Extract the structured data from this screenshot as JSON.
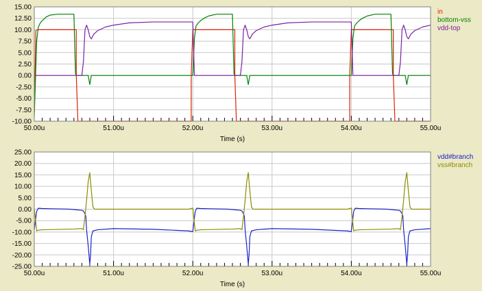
{
  "colors": {
    "background": "#ece9c6",
    "plot_bg": "#ffffff",
    "grid": "#c8c8c8",
    "axis": "#000000",
    "in": "#dd2200",
    "bottom_vss": "#008000",
    "vdd_top": "#7a1fa2",
    "vdd_branch": "#1a23c8",
    "vss_branch": "#8c8c00"
  },
  "chart_data": [
    {
      "type": "line",
      "title": "",
      "xlabel": "Time (s)",
      "ylabel": "",
      "grid": true,
      "legend_position": "right",
      "xlim": [
        50.0,
        55.0
      ],
      "ylim": [
        -10.0,
        15.0
      ],
      "x_tick_values": [
        50.0,
        51.0,
        52.0,
        53.0,
        54.0,
        55.0
      ],
      "x_tick_labels": [
        "50.00u",
        "51.00u",
        "52.00u",
        "53.00u",
        "54.00u",
        "55.00u"
      ],
      "y_tick_values": [
        15.0,
        12.5,
        10.0,
        7.5,
        5.0,
        2.5,
        0.0,
        -2.5,
        -5.0,
        -7.5,
        -10.0
      ],
      "y_tick_labels": [
        "15.00",
        "12.50",
        "10.00",
        "7.50",
        "5.00",
        "2.50",
        "0.00",
        "-2.50",
        "-5.00",
        "-7.50",
        "-10.00"
      ],
      "series": [
        {
          "name": "in",
          "color_key": "in",
          "x": [
            50.0,
            50.02,
            50.04,
            50.53,
            50.53,
            50.55,
            51.98,
            51.98,
            52.0,
            52.53,
            52.53,
            52.55,
            53.98,
            53.98,
            54.0,
            54.53,
            54.53,
            54.55,
            55.0
          ],
          "y": [
            -8,
            9.8,
            10.0,
            10.0,
            0.0,
            -10.0,
            -10.0,
            0.0,
            10.0,
            10.0,
            0.0,
            -10.0,
            -10.0,
            0.0,
            10.0,
            10.0,
            0.0,
            -10.0,
            -10.0
          ]
        },
        {
          "name": "bottom-vss",
          "color_key": "bottom_vss",
          "x": [
            50.0,
            50.03,
            50.05,
            50.07,
            50.09,
            50.12,
            50.15,
            50.2,
            50.3,
            50.45,
            50.5,
            50.52,
            50.54,
            50.6,
            50.68,
            50.7,
            50.72,
            50.8,
            51.9,
            52.0,
            52.02,
            52.04,
            52.07,
            52.1,
            52.15,
            52.2,
            52.3,
            52.45,
            52.5,
            52.52,
            52.54,
            52.6,
            52.68,
            52.7,
            52.72,
            52.8,
            53.9,
            54.0,
            54.02,
            54.04,
            54.07,
            54.1,
            54.15,
            54.2,
            54.3,
            54.45,
            54.5,
            54.52,
            54.54,
            54.6,
            54.68,
            54.7,
            54.72,
            54.8,
            55.0
          ],
          "y": [
            -9,
            7.5,
            10.5,
            11.3,
            11.8,
            12.3,
            12.8,
            13.2,
            13.4,
            13.4,
            13.4,
            0.3,
            0.0,
            0.0,
            0.0,
            -2.0,
            0.0,
            0.0,
            0.0,
            0.0,
            8.0,
            10.8,
            11.5,
            12.0,
            12.6,
            13.0,
            13.4,
            13.4,
            13.4,
            0.3,
            0.0,
            0.0,
            0.0,
            -2.0,
            0.0,
            0.0,
            0.0,
            0.0,
            8.0,
            10.8,
            11.5,
            12.0,
            12.6,
            13.0,
            13.4,
            13.4,
            13.4,
            0.3,
            0.0,
            0.0,
            0.0,
            -2.0,
            0.0,
            0.0,
            0.0
          ]
        },
        {
          "name": "vdd-top",
          "color_key": "vdd_top",
          "x": [
            50.0,
            50.5,
            50.55,
            50.6,
            50.62,
            50.64,
            50.66,
            50.68,
            50.7,
            50.72,
            50.75,
            50.8,
            50.9,
            51.0,
            51.2,
            51.5,
            51.95,
            52.0,
            52.02,
            52.5,
            52.55,
            52.6,
            52.62,
            52.64,
            52.66,
            52.68,
            52.7,
            52.72,
            52.75,
            52.8,
            52.9,
            53.0,
            53.2,
            53.5,
            53.95,
            54.0,
            54.02,
            54.5,
            54.55,
            54.6,
            54.62,
            54.64,
            54.66,
            54.68,
            54.7,
            54.72,
            54.75,
            54.8,
            54.9,
            55.0
          ],
          "y": [
            0.0,
            0.0,
            0.0,
            0.0,
            3.0,
            10.0,
            11.0,
            10.0,
            8.5,
            8.0,
            9.0,
            9.8,
            10.6,
            11.0,
            11.5,
            11.7,
            11.7,
            11.7,
            0.0,
            0.0,
            0.0,
            0.0,
            3.0,
            10.0,
            11.0,
            10.0,
            8.5,
            8.0,
            9.0,
            9.8,
            10.6,
            11.0,
            11.5,
            11.7,
            11.7,
            11.7,
            0.0,
            0.0,
            0.0,
            0.0,
            3.0,
            10.0,
            11.0,
            10.0,
            8.5,
            8.0,
            9.0,
            9.8,
            10.6,
            11.0
          ]
        }
      ]
    },
    {
      "type": "line",
      "title": "",
      "xlabel": "Time (s)",
      "ylabel": "",
      "grid": true,
      "legend_position": "right",
      "xlim": [
        50.0,
        55.0
      ],
      "ylim": [
        -25.0,
        25.0
      ],
      "x_tick_values": [
        50.0,
        51.0,
        52.0,
        53.0,
        54.0,
        55.0
      ],
      "x_tick_labels": [
        "50.00u",
        "51.00u",
        "52.00u",
        "53.00u",
        "54.00u",
        "55.00u"
      ],
      "y_tick_values": [
        25.0,
        20.0,
        15.0,
        10.0,
        5.0,
        0.0,
        -5.0,
        -10.0,
        -15.0,
        -20.0,
        -25.0
      ],
      "y_tick_labels": [
        "25.00",
        "20.00",
        "15.00",
        "10.00",
        "5.00",
        "0.00",
        "-5.00",
        "-10.00",
        "-15.00",
        "-20.00",
        "-25.00"
      ],
      "series": [
        {
          "name": "vdd#branch",
          "color_key": "vdd_branch",
          "x": [
            50.0,
            50.03,
            50.05,
            50.1,
            50.2,
            50.45,
            50.6,
            50.62,
            50.64,
            50.65,
            50.66,
            50.68,
            50.7,
            50.71,
            50.72,
            50.74,
            50.8,
            51.0,
            51.5,
            51.95,
            52.0,
            52.03,
            52.05,
            52.1,
            52.2,
            52.45,
            52.6,
            52.62,
            52.64,
            52.65,
            52.66,
            52.68,
            52.7,
            52.71,
            52.72,
            52.74,
            52.8,
            53.0,
            53.5,
            53.95,
            54.0,
            54.03,
            54.05,
            54.1,
            54.2,
            54.45,
            54.6,
            54.62,
            54.64,
            54.65,
            54.66,
            54.68,
            54.7,
            54.71,
            54.72,
            54.74,
            54.8,
            55.0
          ],
          "y": [
            -9.0,
            -1.0,
            0.4,
            0.3,
            0.2,
            0.0,
            -0.5,
            -0.8,
            -2.0,
            -3.0,
            -9.0,
            -16.0,
            -24.0,
            -20.0,
            -12.0,
            -9.5,
            -9.0,
            -8.5,
            -8.8,
            -9.5,
            -9.8,
            -1.0,
            0.4,
            0.3,
            0.2,
            0.0,
            -0.5,
            -0.8,
            -2.0,
            -3.0,
            -9.0,
            -16.0,
            -24.0,
            -20.0,
            -12.0,
            -9.5,
            -9.0,
            -8.5,
            -8.8,
            -9.5,
            -9.8,
            -1.0,
            0.4,
            0.3,
            0.2,
            0.0,
            -0.5,
            -0.8,
            -2.0,
            -3.0,
            -9.0,
            -16.0,
            -24.0,
            -20.0,
            -12.0,
            -9.5,
            -9.0,
            -8.5
          ]
        },
        {
          "name": "vss#branch",
          "color_key": "vss_branch",
          "x": [
            50.0,
            50.03,
            50.05,
            50.1,
            50.5,
            50.6,
            50.62,
            50.64,
            50.66,
            50.68,
            50.7,
            50.72,
            50.74,
            50.76,
            50.8,
            51.0,
            51.95,
            52.0,
            52.03,
            52.05,
            52.1,
            52.5,
            52.6,
            52.62,
            52.64,
            52.66,
            52.68,
            52.7,
            52.72,
            52.74,
            52.76,
            52.8,
            53.0,
            53.95,
            54.0,
            54.03,
            54.05,
            54.1,
            54.5,
            54.6,
            54.62,
            54.64,
            54.66,
            54.68,
            54.7,
            54.72,
            54.74,
            54.76,
            54.8,
            55.0
          ],
          "y": [
            0.5,
            -9.5,
            -9.2,
            -9.0,
            -8.7,
            -8.5,
            -9.0,
            -3.0,
            4.0,
            12.0,
            16.0,
            8.0,
            1.0,
            0.0,
            0.0,
            0.0,
            0.0,
            0.5,
            -9.5,
            -9.2,
            -9.0,
            -8.7,
            -8.5,
            -9.0,
            -3.0,
            4.0,
            12.0,
            16.0,
            8.0,
            1.0,
            0.0,
            0.0,
            0.0,
            0.0,
            0.5,
            -9.5,
            -9.2,
            -9.0,
            -8.7,
            -8.5,
            -9.0,
            -3.0,
            4.0,
            12.0,
            16.0,
            8.0,
            1.0,
            0.0,
            0.0,
            0.0
          ]
        }
      ]
    }
  ]
}
